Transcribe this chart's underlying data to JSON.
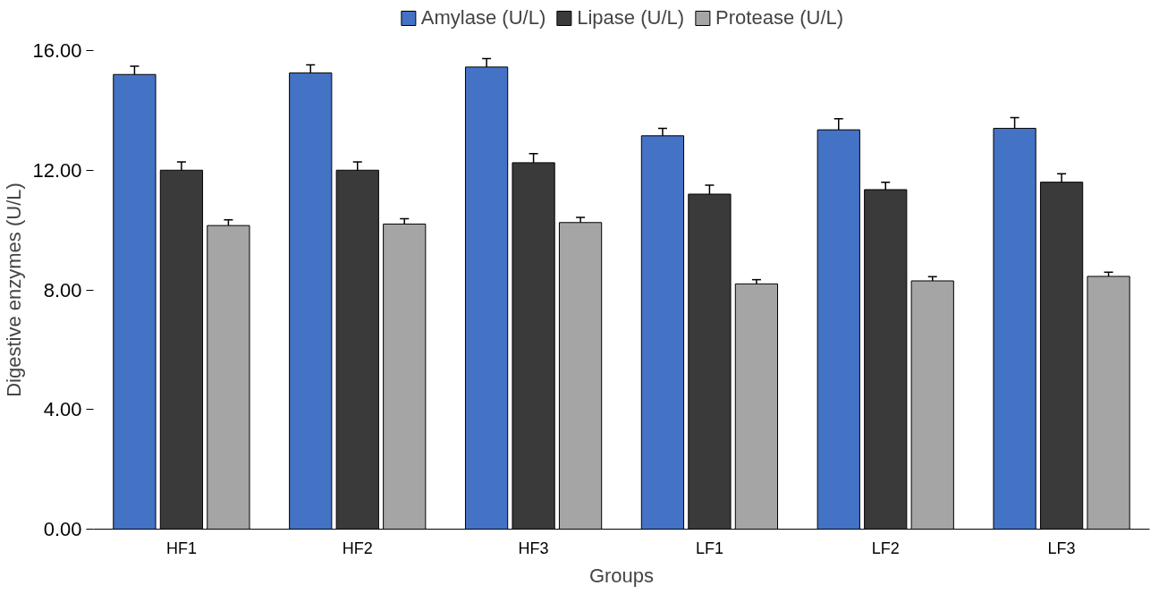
{
  "chart_data": {
    "type": "bar",
    "xlabel": "Groups",
    "ylabel": "Digestive enzymes (U/L)",
    "categories": [
      "HF1",
      "HF2",
      "HF3",
      "LF1",
      "LF2",
      "LF3"
    ],
    "series": [
      {
        "name": "Amylase (U/L)",
        "color": "#4472c4",
        "values": [
          15.2,
          15.25,
          15.45,
          13.15,
          13.35,
          13.4
        ],
        "errors": [
          0.28,
          0.27,
          0.28,
          0.25,
          0.37,
          0.36
        ]
      },
      {
        "name": "Lipase (U/L)",
        "color": "#3a3a3a",
        "values": [
          12.0,
          12.0,
          12.25,
          11.2,
          11.35,
          11.6
        ],
        "errors": [
          0.28,
          0.28,
          0.3,
          0.3,
          0.25,
          0.28
        ]
      },
      {
        "name": "Protease (U/L)",
        "color": "#a5a5a5",
        "values": [
          10.15,
          10.2,
          10.25,
          8.2,
          8.3,
          8.45
        ],
        "errors": [
          0.19,
          0.18,
          0.17,
          0.14,
          0.14,
          0.14
        ]
      }
    ],
    "ylim": [
      0,
      16
    ],
    "yticks": [
      {
        "value": 0,
        "label": "0.00"
      },
      {
        "value": 4,
        "label": "4.00"
      },
      {
        "value": 8,
        "label": "8.00"
      },
      {
        "value": 12,
        "label": "12.00"
      },
      {
        "value": 16,
        "label": "16.00"
      }
    ],
    "grid": false,
    "legend": "top"
  }
}
